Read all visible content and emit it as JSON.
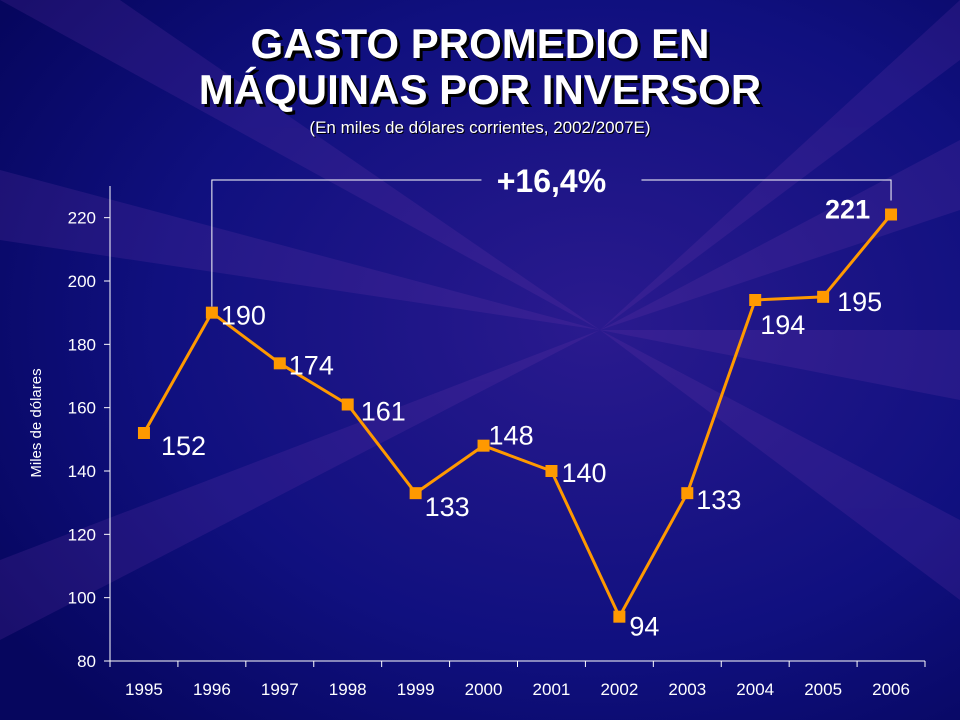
{
  "title_lines": [
    "GASTO PROMEDIO EN",
    "MÁQUINAS POR INVERSOR"
  ],
  "subtitle": "(En miles de dólares corrientes, 2002/2007E)",
  "colors": {
    "background": "#0a0a78",
    "series": "#ff9900",
    "axis": "#ffffff",
    "text": "#ffffff"
  },
  "chart_data": {
    "type": "line",
    "title": "GASTO PROMEDIO EN MÁQUINAS POR INVERSOR",
    "subtitle": "(En miles de dólares corrientes, 2002/2007E)",
    "xlabel": "",
    "ylabel": "Miles de dólares",
    "ylim": [
      80,
      230
    ],
    "yticks": [
      80,
      100,
      120,
      140,
      160,
      180,
      200,
      220
    ],
    "categories": [
      "1995",
      "1996",
      "1997",
      "1998",
      "1999",
      "2000",
      "2001",
      "2002",
      "2003",
      "2004",
      "2005",
      "2006"
    ],
    "series": [
      {
        "values": [
          152,
          190,
          174,
          161,
          133,
          148,
          140,
          94,
          133,
          194,
          195,
          221
        ]
      }
    ],
    "data_labels": [
      "152",
      "190",
      "174",
      "161",
      "133",
      "148",
      "140",
      "94",
      "133",
      "194",
      "195",
      "221"
    ],
    "grid": false,
    "annotation": {
      "text": "+16,4%",
      "from": "1996",
      "to": "2006"
    }
  }
}
